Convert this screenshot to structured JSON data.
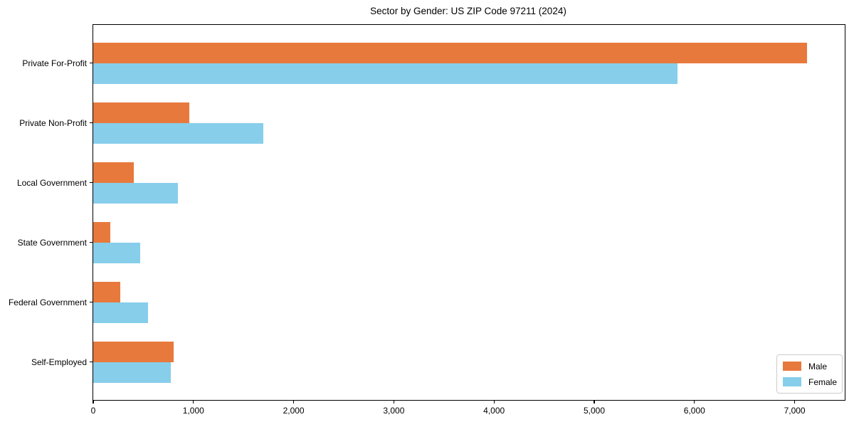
{
  "chart_data": {
    "type": "bar",
    "orientation": "horizontal",
    "title": "Sector by Gender: US ZIP Code 97211 (2024)",
    "categories": [
      "Private For-Profit",
      "Private Non-Profit",
      "Local Government",
      "State Government",
      "Federal Government",
      "Self-Employed"
    ],
    "series": [
      {
        "name": "Male",
        "color": "#e8793d",
        "values": [
          7120,
          960,
          405,
          170,
          270,
          800
        ]
      },
      {
        "name": "Female",
        "color": "#87ceeb",
        "values": [
          5830,
          1700,
          845,
          465,
          545,
          775
        ]
      }
    ],
    "xlabel": "",
    "ylabel": "",
    "xlim": [
      0,
      7500
    ],
    "xticks": [
      0,
      1000,
      2000,
      3000,
      4000,
      5000,
      6000,
      7000
    ],
    "xtick_labels": [
      "0",
      "1,000",
      "2,000",
      "3,000",
      "4,000",
      "5,000",
      "6,000",
      "7,000"
    ],
    "legend_position": "lower right",
    "grid": false,
    "background_color": "#ffffff",
    "axis_color": "#000000"
  }
}
